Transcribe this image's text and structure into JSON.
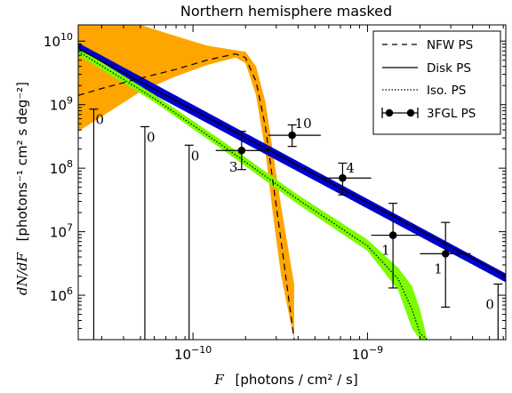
{
  "chart_data": {
    "type": "line",
    "title": "Northern hemisphere masked",
    "xlabel": {
      "var": "F",
      "text": "[photons / cm² / s]"
    },
    "ylabel": {
      "var": "dN/dF",
      "text": "[photons⁻¹ cm² s deg⁻²]"
    },
    "xscale": "log",
    "yscale": "log",
    "xlim": [
      2.2e-11,
      6.2e-09
    ],
    "ylim": [
      200000.0,
      18000000000.0
    ],
    "xticks": [
      {
        "value": 1e-10,
        "base": "10",
        "exp": "−10"
      },
      {
        "value": 1e-09,
        "base": "10",
        "exp": "−9"
      }
    ],
    "yticks": [
      {
        "value": 1000000.0,
        "base": "10",
        "exp": "6"
      },
      {
        "value": 10000000.0,
        "base": "10",
        "exp": "7"
      },
      {
        "value": 100000000.0,
        "base": "10",
        "exp": "8"
      },
      {
        "value": 1000000000.0,
        "base": "10",
        "exp": "9"
      },
      {
        "value": 10000000000.0,
        "base": "10",
        "exp": "10"
      }
    ],
    "legend": {
      "position": "top-right",
      "entries": [
        {
          "label": "NFW PS",
          "style": "dashed"
        },
        {
          "label": "Disk PS",
          "style": "solid"
        },
        {
          "label": "Iso. PS",
          "style": "dotted"
        },
        {
          "label": "3FGL PS",
          "style": "errorbar"
        }
      ]
    },
    "series": [
      {
        "legend": "NFW PS",
        "style": "dashed",
        "color": "#000000",
        "band_color": "#FFA500",
        "x": [
          2.2e-11,
          3e-11,
          5e-11,
          8e-11,
          1.2e-10,
          1.75e-10,
          2e-10,
          2.3e-10,
          2.6e-10,
          2.9e-10,
          3.2e-10,
          3.8e-10
        ],
        "y": [
          1400000000.0,
          1800000000.0,
          2600000000.0,
          3600000000.0,
          5000000000.0,
          6300000000.0,
          5500000000.0,
          2300000000.0,
          450000000.0,
          50000000.0,
          7000000.0,
          200000.0
        ],
        "band_upper": [
          25000000000.0,
          22000000000.0,
          18000000000.0,
          12000000000.0,
          8500000000.0,
          7200000000.0,
          6800000000.0,
          4000000000.0,
          1100000000.0,
          150000000.0,
          25000000.0,
          1500000.0
        ],
        "band_lower": [
          380000000.0,
          650000000.0,
          1600000000.0,
          2800000000.0,
          4200000000.0,
          5500000000.0,
          4500000000.0,
          1400000000.0,
          180000000.0,
          15000000.0,
          2000000.0,
          200000.0
        ]
      },
      {
        "legend": "Disk PS",
        "style": "solid",
        "color": "#000000",
        "band_color": "#0000CC",
        "x": [
          2.2e-11,
          6.2e-09
        ],
        "y": [
          7600000000.0,
          2000000.0
        ],
        "band_upper": [
          9400000000.0,
          2200000.0
        ],
        "band_lower": [
          6200000000.0,
          1600000.0
        ]
      },
      {
        "legend": "Iso. PS",
        "style": "dotted",
        "color": "#000000",
        "band_color": "#7CFC00",
        "x": [
          2.2e-11,
          6e-11,
          1.5e-10,
          4e-10,
          1e-09,
          1.5e-09,
          1.8e-09,
          2e-09,
          2.2e-09
        ],
        "y": [
          6900000000.0,
          1250000000.0,
          220000000.0,
          32000000.0,
          6000000.0,
          1800000.0,
          600000.0,
          250000.0,
          200000.0
        ],
        "band_upper": [
          7800000000.0,
          1450000000.0,
          260000000.0,
          38000000.0,
          7500000.0,
          2700000.0,
          1400000.0,
          600000.0,
          200000.0
        ],
        "band_lower": [
          6000000000.0,
          1100000000.0,
          190000000.0,
          27000000.0,
          5000000.0,
          1200000.0,
          300000.0,
          200000.0,
          200000.0
        ]
      }
    ],
    "points": {
      "legend": "3FGL PS",
      "color": "#000000",
      "data": [
        {
          "x": 2.7e-11,
          "y": 850000000.0,
          "yerr_low": 200000.0,
          "yerr_high": 850000000.0,
          "xerr_low": null,
          "xerr_high": null,
          "label": "0",
          "upper_limit": true
        },
        {
          "x": 5.3e-11,
          "y": 450000000.0,
          "yerr_low": 200000.0,
          "yerr_high": 450000000.0,
          "xerr_low": null,
          "xerr_high": null,
          "label": "0",
          "upper_limit": true
        },
        {
          "x": 9.5e-11,
          "y": 230000000.0,
          "yerr_low": 200000.0,
          "yerr_high": 230000000.0,
          "xerr_low": null,
          "xerr_high": null,
          "label": "0",
          "upper_limit": true
        },
        {
          "x": 1.9e-10,
          "y": 190000000.0,
          "yerr_low": 95000000.0,
          "yerr_high": 380000000.0,
          "xerr_low": 1.35e-10,
          "xerr_high": 2.7e-10,
          "label": "3",
          "upper_limit": false
        },
        {
          "x": 3.7e-10,
          "y": 330000000.0,
          "yerr_low": 220000000.0,
          "yerr_high": 480000000.0,
          "xerr_low": 2.7e-10,
          "xerr_high": 5.4e-10,
          "label": "10",
          "upper_limit": false
        },
        {
          "x": 7.2e-10,
          "y": 70000000.0,
          "yerr_low": 38000000.0,
          "yerr_high": 120000000.0,
          "xerr_low": 5.4e-10,
          "xerr_high": 1.05e-09,
          "label": "4",
          "upper_limit": false
        },
        {
          "x": 1.4e-09,
          "y": 8800000.0,
          "yerr_low": 1300000.0,
          "yerr_high": 28000000.0,
          "xerr_low": 1.05e-09,
          "xerr_high": 2e-09,
          "label": "1",
          "upper_limit": false
        },
        {
          "x": 2.8e-09,
          "y": 4500000.0,
          "yerr_low": 650000.0,
          "yerr_high": 14000000.0,
          "xerr_low": 2e-09,
          "xerr_high": 3.9e-09,
          "label": "1",
          "upper_limit": false
        },
        {
          "x": 5.6e-09,
          "y": 1500000.0,
          "yerr_low": 200000.0,
          "yerr_high": 1500000.0,
          "xerr_low": null,
          "xerr_high": null,
          "label": "0",
          "upper_limit": true
        }
      ]
    }
  }
}
